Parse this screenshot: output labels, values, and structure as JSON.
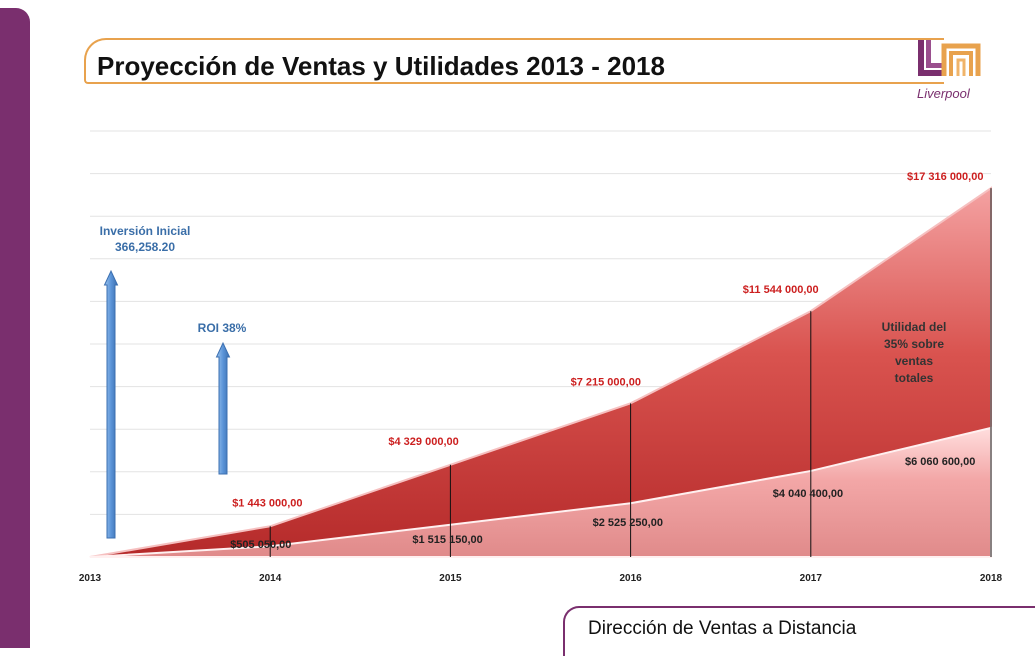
{
  "header": {
    "title": "Proyección de Ventas y Utilidades 2013 - 2018"
  },
  "logo": {
    "text": "Liverpool",
    "icon": "liverpool-logo-icon",
    "colors": [
      "#7a2f6e",
      "#e8a24d"
    ]
  },
  "footer": {
    "text": "Dirección de Ventas a Distancia"
  },
  "colors": {
    "accent": "#7a2f6e",
    "title_border": "#e8a24d",
    "sales_area": "#c9373a",
    "profit_area": "#f2a3a3",
    "label_red": "#cc1f1f",
    "annotation_blue": "#3a6ea8"
  },
  "chart_data": {
    "type": "area",
    "x": [
      "2013",
      "2014",
      "2015",
      "2016",
      "2017",
      "2018"
    ],
    "series": [
      {
        "values": [
          0,
          1443000,
          4329000,
          7215000,
          11544000,
          17316000
        ],
        "labels": [
          "",
          "$1 443 000,00",
          "$4 329 000,00",
          "$7 215 000,00",
          "$11 544 000,00",
          "$17 316 000,00"
        ]
      },
      {
        "values": [
          0,
          505050,
          1515150,
          2525250,
          4040400,
          6060600
        ],
        "labels": [
          "",
          "$505 050,00",
          "$1 515 150,00",
          "$2 525 250,00",
          "$4 040 400,00",
          "$6 060 600,00"
        ]
      }
    ],
    "ylim": [
      0,
      20000000
    ],
    "grid": true,
    "annotations": [
      {
        "id": "inversion",
        "lines": [
          "Inversión Inicial",
          "366,258.20"
        ]
      },
      {
        "id": "roi",
        "lines": [
          "ROI 38%"
        ]
      },
      {
        "id": "utilidad",
        "lines": [
          "Utilidad del",
          "35% sobre",
          "ventas",
          "totales"
        ]
      }
    ]
  }
}
